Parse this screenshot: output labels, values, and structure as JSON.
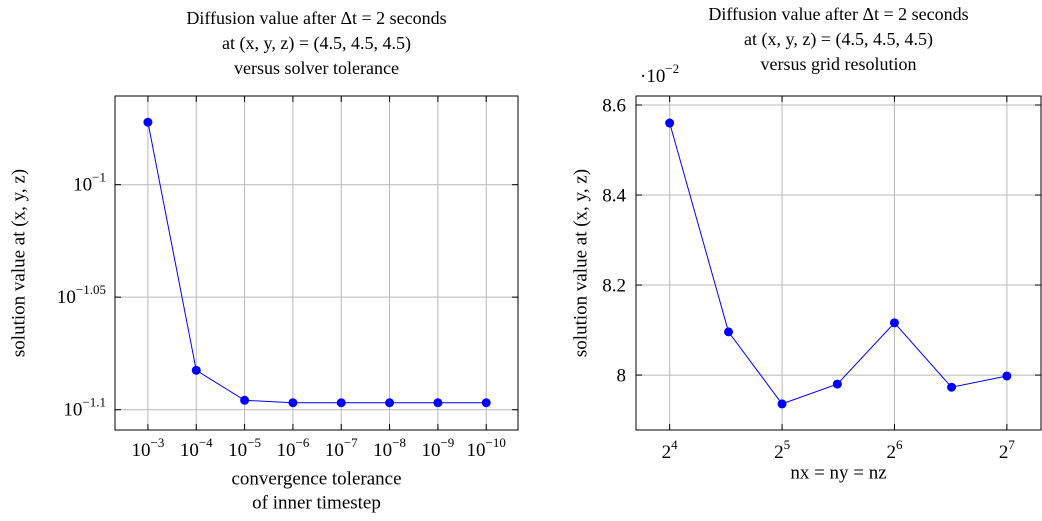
{
  "chart_data": [
    {
      "type": "line",
      "title": [
        "Diffusion value after Δt = 2 seconds",
        "at (x, y, z) = (4.5, 4.5, 4.5)",
        "versus solver tolerance"
      ],
      "xlabel": [
        "convergence tolerance",
        "of inner timestep"
      ],
      "ylabel": "solution value at (x, y, z)",
      "xscale": "log",
      "yscale": "log",
      "grid": true,
      "x": [
        0.001,
        0.0001,
        1e-05,
        1e-06,
        1e-07,
        1e-08,
        1e-09,
        1e-10
      ],
      "series": [
        {
          "color": "#0000ff",
          "values": [
            0.1066,
            0.0827,
            0.0802,
            0.08,
            0.08,
            0.08,
            0.08,
            0.08
          ]
        }
      ],
      "xlim": [
        0.0048,
        2.2e-11
      ],
      "ylim": [
        0.0778,
        0.1095
      ],
      "xticks": [
        {
          "value": 0.001,
          "label": "10−3"
        },
        {
          "value": 0.0001,
          "label": "10−4"
        },
        {
          "value": 1e-05,
          "label": "10−5"
        },
        {
          "value": 1e-06,
          "label": "10−6"
        },
        {
          "value": 1e-07,
          "label": "10−7"
        },
        {
          "value": 1e-08,
          "label": "10−8"
        },
        {
          "value": 1e-09,
          "label": "10−9"
        },
        {
          "value": 1e-10,
          "label": "10−10"
        }
      ],
      "yticks": [
        {
          "value": 0.1,
          "label": "10−1"
        },
        {
          "value": 0.08913,
          "label": "10−1.05"
        },
        {
          "value": 0.07943,
          "label": "10−1.1"
        }
      ]
    },
    {
      "type": "line",
      "title": [
        "Diffusion value after Δt = 2 seconds",
        "at (x, y, z) = (4.5, 4.5, 4.5)",
        "versus grid resolution"
      ],
      "xlabel": [
        "nx = ny = nz"
      ],
      "ylabel": "solution value at (x, y, z)",
      "y_multiplier": "·10−2",
      "xscale": "log",
      "yscale": "linear",
      "grid": true,
      "x": [
        16,
        23,
        32,
        45,
        64,
        91,
        128
      ],
      "series": [
        {
          "color": "#0000ff",
          "values": [
            8.56,
            8.096,
            7.936,
            7.98,
            8.116,
            7.973,
            7.998
          ]
        }
      ],
      "xlim": [
        13,
        158
      ],
      "ylim": [
        7.878,
        8.62
      ],
      "xticks": [
        {
          "value": 16,
          "label": "24"
        },
        {
          "value": 32,
          "label": "25"
        },
        {
          "value": 64,
          "label": "26"
        },
        {
          "value": 128,
          "label": "27"
        }
      ],
      "yticks": [
        8,
        8.2,
        8.4,
        8.6
      ]
    }
  ]
}
